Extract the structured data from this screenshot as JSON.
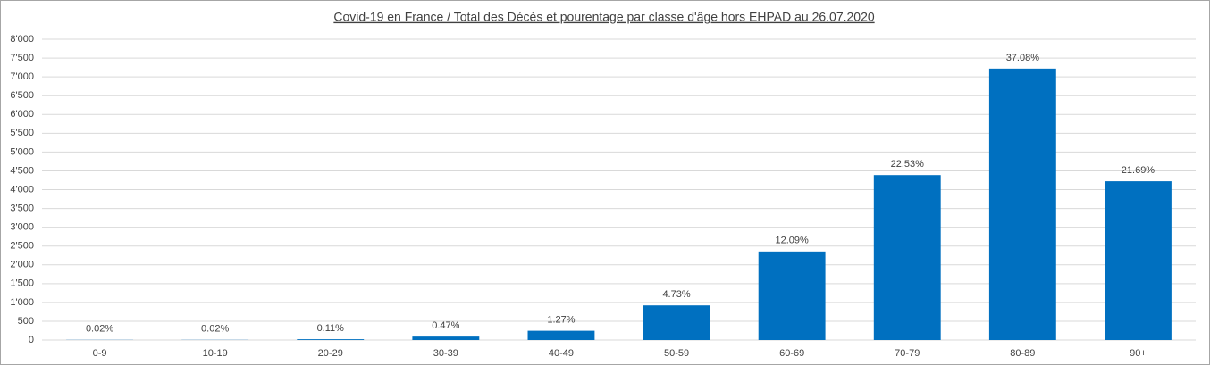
{
  "chart_data": {
    "type": "bar",
    "title": "Covid-19 en France /  Total des Décès et pourentage par classe d'âge hors EHPAD au 26.07.2020",
    "categories": [
      "0-9",
      "10-19",
      "20-29",
      "30-39",
      "40-49",
      "50-59",
      "60-69",
      "70-79",
      "80-89",
      "90+"
    ],
    "values": [
      4,
      4,
      21,
      92,
      247,
      921,
      2354,
      4387,
      7220,
      4223
    ],
    "data_labels": [
      "0.02%",
      "0.02%",
      "0.11%",
      "0.47%",
      "1.27%",
      "4.73%",
      "12.09%",
      "22.53%",
      "37.08%",
      "21.69%"
    ],
    "color": "#0070c0",
    "ylim": [
      0,
      8000
    ],
    "yticks": [
      0,
      500,
      {
        "value": 1000,
        "label": "1'000"
      },
      {
        "value": 1500,
        "label": "1'500"
      },
      {
        "value": 2000,
        "label": "2'000"
      },
      {
        "value": 2500,
        "label": "2'500"
      },
      {
        "value": 3000,
        "label": "3'000"
      },
      {
        "value": 3500,
        "label": "3'500"
      },
      {
        "value": 4000,
        "label": "4'000"
      },
      {
        "value": 4500,
        "label": "4'500"
      },
      {
        "value": 5000,
        "label": "5'000"
      },
      {
        "value": 5500,
        "label": "5'500"
      },
      {
        "value": 6000,
        "label": "6'000"
      },
      {
        "value": 6500,
        "label": "6'500"
      },
      {
        "value": 7000,
        "label": "7'000"
      },
      {
        "value": 7500,
        "label": "7'500"
      },
      {
        "value": 8000,
        "label": "8'000"
      }
    ],
    "grid": true
  }
}
